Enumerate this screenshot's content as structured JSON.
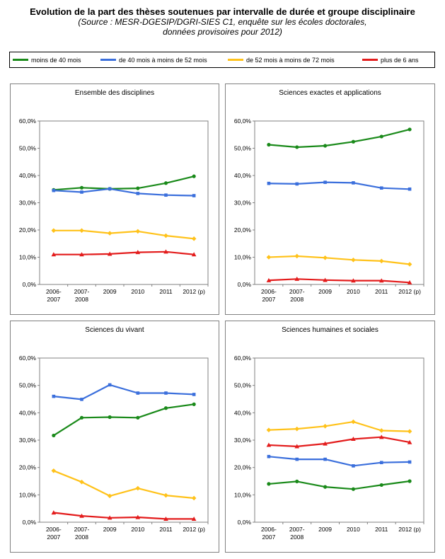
{
  "header": {
    "title": "Evolution de la part des thèses soutenues par intervalle de durée et groupe disciplinaire",
    "subtitle_line1": "(Source : MESR-DGESIP/DGRI-SIES C1, enquête sur les écoles doctorales,",
    "subtitle_line2": "données provisoires pour 2012)"
  },
  "legend": [
    {
      "label": "moins de 40 mois",
      "color": "#1a8a1a"
    },
    {
      "label": "de 40 mois à moins de 52 mois",
      "color": "#3b6fdc"
    },
    {
      "label": "de 52 mois à moins de 72 mois",
      "color": "#ffc21a"
    },
    {
      "label": "plus de 6 ans",
      "color": "#e31c1c"
    }
  ],
  "chart_data": [
    {
      "type": "line",
      "title": "Ensemble des disciplines",
      "categories": [
        [
          "2006-",
          "2007"
        ],
        [
          "2007-",
          "2008"
        ],
        [
          "2009"
        ],
        [
          "2010"
        ],
        [
          "2011"
        ],
        [
          "2012 (p)"
        ]
      ],
      "y_ticks": [
        "0,0%",
        "10,0%",
        "20,0%",
        "30,0%",
        "40,0%",
        "50,0%",
        "60,0%"
      ],
      "ylim": [
        0,
        60
      ],
      "series": [
        {
          "name": "moins de 40 mois",
          "values": [
            34.7,
            35.5,
            35.1,
            35.3,
            37.2,
            39.7
          ]
        },
        {
          "name": "de 40 mois à moins de 52 mois",
          "values": [
            34.5,
            33.9,
            35.1,
            33.4,
            32.8,
            32.6
          ]
        },
        {
          "name": "de 52 mois à moins de 72 mois",
          "values": [
            19.8,
            19.8,
            18.8,
            19.5,
            17.9,
            16.8
          ]
        },
        {
          "name": "plus de 6 ans",
          "values": [
            11.0,
            11.0,
            11.2,
            11.8,
            12.0,
            11.0
          ]
        }
      ]
    },
    {
      "type": "line",
      "title": "Sciences exactes et applications",
      "categories": [
        [
          "2006-",
          "2007"
        ],
        [
          "2007-",
          "2008"
        ],
        [
          "2009"
        ],
        [
          "2010"
        ],
        [
          "2011"
        ],
        [
          "2012 (p)"
        ]
      ],
      "y_ticks": [
        "0,0%",
        "10,0%",
        "20,0%",
        "30,0%",
        "40,0%",
        "50,0%",
        "60,0%"
      ],
      "ylim": [
        0,
        60
      ],
      "series": [
        {
          "name": "moins de 40 mois",
          "values": [
            51.3,
            50.4,
            50.9,
            52.4,
            54.3,
            56.9
          ]
        },
        {
          "name": "de 40 mois à moins de 52 mois",
          "values": [
            37.1,
            36.9,
            37.5,
            37.3,
            35.4,
            35.0
          ]
        },
        {
          "name": "de 52 mois à moins de 72 mois",
          "values": [
            10.0,
            10.4,
            9.8,
            9.0,
            8.6,
            7.4
          ]
        },
        {
          "name": "plus de 6 ans",
          "values": [
            1.5,
            2.0,
            1.6,
            1.4,
            1.4,
            0.7
          ]
        }
      ]
    },
    {
      "type": "line",
      "title": "Sciences du vivant",
      "categories": [
        [
          "2006-",
          "2007"
        ],
        [
          "2007-",
          "2008"
        ],
        [
          "2009"
        ],
        [
          "2010"
        ],
        [
          "2011"
        ],
        [
          "2012 (p)"
        ]
      ],
      "y_ticks": [
        "0,0%",
        "10,0%",
        "20,0%",
        "30,0%",
        "40,0%",
        "50,0%",
        "60,0%"
      ],
      "ylim": [
        0,
        60
      ],
      "series": [
        {
          "name": "moins de 40 mois",
          "values": [
            31.7,
            38.2,
            38.4,
            38.2,
            41.7,
            43.1
          ]
        },
        {
          "name": "de 40 mois à moins de 52 mois",
          "values": [
            46.0,
            44.9,
            50.2,
            47.2,
            47.2,
            46.7
          ]
        },
        {
          "name": "de 52 mois à moins de 72 mois",
          "values": [
            18.8,
            14.7,
            9.6,
            12.4,
            9.8,
            8.8
          ]
        },
        {
          "name": "plus de 6 ans",
          "values": [
            3.5,
            2.3,
            1.6,
            1.8,
            1.2,
            1.2
          ]
        }
      ]
    },
    {
      "type": "line",
      "title": "Sciences humaines et sociales",
      "categories": [
        [
          "2006-",
          "2007"
        ],
        [
          "2007-",
          "2008"
        ],
        [
          "2009"
        ],
        [
          "2010"
        ],
        [
          "2011"
        ],
        [
          "2012 (p)"
        ]
      ],
      "y_ticks": [
        "0,0%",
        "10,0%",
        "20,0%",
        "30,0%",
        "40,0%",
        "50,0%",
        "60,0%"
      ],
      "ylim": [
        0,
        60
      ],
      "series": [
        {
          "name": "moins de 40 mois",
          "values": [
            14.0,
            14.9,
            12.9,
            12.1,
            13.6,
            15.0
          ]
        },
        {
          "name": "de 40 mois à moins de 52 mois",
          "values": [
            24.0,
            23.0,
            23.0,
            20.6,
            21.8,
            22.0
          ]
        },
        {
          "name": "de 52 mois à moins de 72 mois",
          "values": [
            33.7,
            34.1,
            35.1,
            36.7,
            33.5,
            33.2
          ]
        },
        {
          "name": "plus de 6 ans",
          "values": [
            28.2,
            27.7,
            28.7,
            30.4,
            31.1,
            29.2
          ]
        }
      ]
    }
  ]
}
